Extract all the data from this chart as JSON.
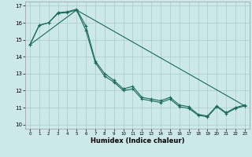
{
  "xlabel": "Humidex (Indice chaleur)",
  "background_color": "#cce8e8",
  "grid_color": "#aacccc",
  "line_color": "#1a6a5a",
  "xlim": [
    -0.5,
    23.5
  ],
  "ylim": [
    9.75,
    17.25
  ],
  "xticks": [
    0,
    1,
    2,
    3,
    4,
    5,
    6,
    7,
    8,
    9,
    10,
    11,
    12,
    13,
    14,
    15,
    16,
    17,
    18,
    19,
    20,
    21,
    22,
    23
  ],
  "yticks": [
    10,
    11,
    12,
    13,
    14,
    15,
    16,
    17
  ],
  "curve1_x": [
    0,
    1,
    2,
    3,
    4,
    5,
    6,
    7,
    8,
    9,
    10,
    11,
    12,
    13,
    14,
    15,
    16,
    17,
    18,
    19,
    20,
    21,
    22,
    23
  ],
  "curve1_y": [
    14.7,
    15.85,
    16.0,
    16.6,
    16.65,
    16.8,
    15.8,
    13.75,
    13.0,
    12.6,
    12.1,
    12.25,
    11.6,
    11.5,
    11.4,
    11.6,
    11.15,
    11.05,
    10.6,
    10.5,
    11.1,
    10.7,
    11.0,
    11.15
  ],
  "curve2_x": [
    0,
    1,
    2,
    3,
    4,
    5,
    6,
    7,
    8,
    9,
    10,
    11,
    12,
    13,
    14,
    15,
    16,
    17,
    18,
    19,
    20,
    21,
    22,
    23
  ],
  "curve2_y": [
    14.7,
    15.85,
    16.0,
    16.55,
    16.6,
    16.75,
    15.55,
    13.65,
    12.85,
    12.5,
    12.0,
    12.1,
    11.5,
    11.4,
    11.3,
    11.5,
    11.05,
    10.95,
    10.55,
    10.45,
    11.05,
    10.65,
    10.95,
    11.1
  ],
  "line3_x": [
    0,
    5,
    23
  ],
  "line3_y": [
    14.7,
    16.75,
    11.1
  ]
}
